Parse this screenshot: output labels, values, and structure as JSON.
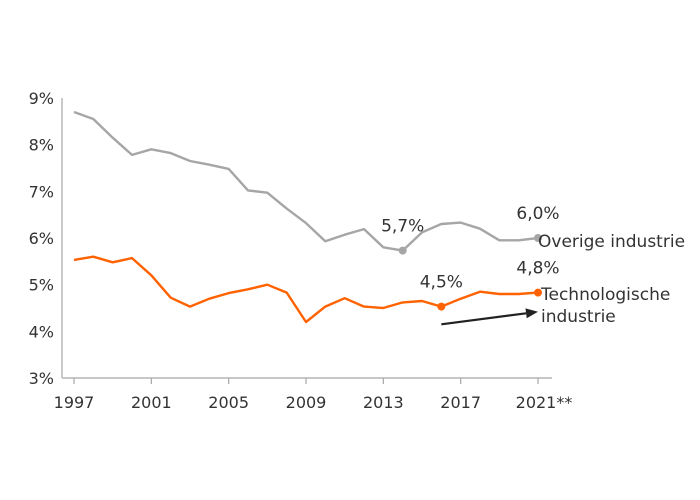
{
  "chart_data": {
    "type": "line",
    "title": "",
    "xlabel": "",
    "ylabel": "",
    "ylim": [
      3,
      9
    ],
    "xlim": [
      1997,
      2021
    ],
    "grid": false,
    "x_tick_labels": [
      "1997",
      "2001",
      "2005",
      "2009",
      "2013",
      "2017",
      "2021**"
    ],
    "y_tick_labels": [
      "3%",
      "4%",
      "5%",
      "6%",
      "7%",
      "8%",
      "9%"
    ],
    "x": [
      1997,
      1998,
      1999,
      2000,
      2001,
      2002,
      2003,
      2004,
      2005,
      2006,
      2007,
      2008,
      2009,
      2010,
      2011,
      2012,
      2013,
      2014,
      2015,
      2016,
      2017,
      2018,
      2019,
      2020,
      2021
    ],
    "series": [
      {
        "name": "Overige industrie",
        "color": "#a6a6a6",
        "values": [
          8.7,
          8.55,
          8.15,
          7.78,
          7.9,
          7.82,
          7.65,
          7.57,
          7.48,
          7.02,
          6.97,
          6.63,
          6.32,
          5.93,
          6.07,
          6.19,
          5.8,
          5.73,
          6.12,
          6.3,
          6.33,
          6.2,
          5.95,
          5.95,
          6.0
        ]
      },
      {
        "name": "Technologische industrie",
        "color": "#ff6200",
        "values": [
          5.53,
          5.6,
          5.48,
          5.57,
          5.2,
          4.72,
          4.53,
          4.7,
          4.82,
          4.9,
          5.0,
          4.83,
          4.2,
          4.53,
          4.71,
          4.53,
          4.5,
          4.62,
          4.65,
          4.53,
          4.7,
          4.85,
          4.8,
          4.8,
          4.83
        ]
      }
    ],
    "annotations": [
      {
        "text": "5,7%",
        "series": 0,
        "x": 2014
      },
      {
        "text": "6,0%",
        "series": 0,
        "x": 2021
      },
      {
        "text": "4,5%",
        "series": 1,
        "x": 2016
      },
      {
        "text": "4,8%",
        "series": 1,
        "x": 2021
      }
    ],
    "arrow": {
      "from": [
        2016,
        4.15
      ],
      "to": [
        2021,
        4.42
      ],
      "color": "#222222"
    }
  }
}
